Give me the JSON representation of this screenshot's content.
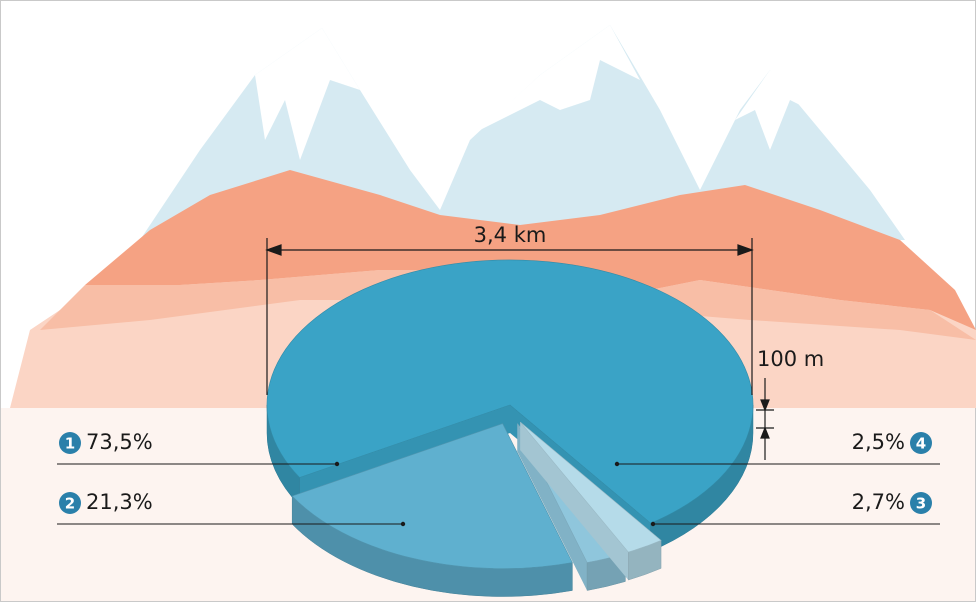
{
  "chart_data": {
    "type": "pie",
    "categories": [
      "1",
      "2",
      "3",
      "4"
    ],
    "values": [
      73.5,
      21.3,
      2.7,
      2.5
    ],
    "value_labels": [
      "73,5%",
      "21,3%",
      "2,7%",
      "2,5%"
    ],
    "colors": [
      "#3aa3c6",
      "#5fb0cf",
      "#8fc6dc",
      "#b5dbe9"
    ],
    "annotations": [
      "3,4 km",
      "100 m"
    ]
  }
}
